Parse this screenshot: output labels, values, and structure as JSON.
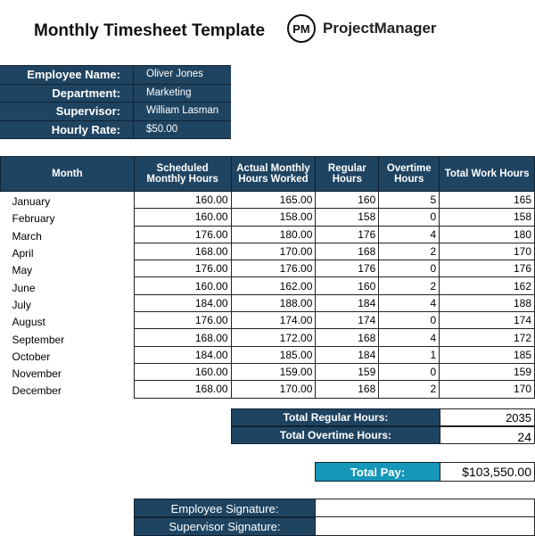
{
  "title": "Monthly Timesheet Template",
  "logo": {
    "mark": "PM",
    "brand": "ProjectManager"
  },
  "info": [
    {
      "label": "Employee Name:",
      "value": "Oliver Jones"
    },
    {
      "label": "Department:",
      "value": "Marketing"
    },
    {
      "label": "Supervisor:",
      "value": "William Lasman"
    },
    {
      "label": "Hourly Rate:",
      "value": "$50.00"
    }
  ],
  "table": {
    "headers": [
      "Month",
      "Scheduled Monthly Hours",
      "Actual Monthly Hours Worked",
      "Regular Hours",
      "Overtime Hours",
      "Total Work Hours"
    ],
    "rows": [
      [
        "January",
        "160.00",
        "165.00",
        "160",
        "5",
        "165"
      ],
      [
        "February",
        "160.00",
        "158.00",
        "158",
        "0",
        "158"
      ],
      [
        "March",
        "176.00",
        "180.00",
        "176",
        "4",
        "180"
      ],
      [
        "April",
        "168.00",
        "170.00",
        "168",
        "2",
        "170"
      ],
      [
        "May",
        "176.00",
        "176.00",
        "176",
        "0",
        "176"
      ],
      [
        "June",
        "160.00",
        "162.00",
        "160",
        "2",
        "162"
      ],
      [
        "July",
        "184.00",
        "188.00",
        "184",
        "4",
        "188"
      ],
      [
        "August",
        "176.00",
        "174.00",
        "174",
        "0",
        "174"
      ],
      [
        "September",
        "168.00",
        "172.00",
        "168",
        "4",
        "172"
      ],
      [
        "October",
        "184.00",
        "185.00",
        "184",
        "1",
        "185"
      ],
      [
        "November",
        "160.00",
        "159.00",
        "159",
        "0",
        "159"
      ],
      [
        "December",
        "168.00",
        "170.00",
        "168",
        "2",
        "170"
      ]
    ]
  },
  "totals": {
    "regular_label": "Total Regular Hours:",
    "regular_value": "2035",
    "overtime_label": "Total Overtime Hours:",
    "overtime_value": "24"
  },
  "pay": {
    "label": "Total Pay:",
    "value": "$103,550.00",
    "color": "#1497b8"
  },
  "signatures": {
    "employee": "Employee Signature:",
    "supervisor": "Supervisor Signature:"
  }
}
